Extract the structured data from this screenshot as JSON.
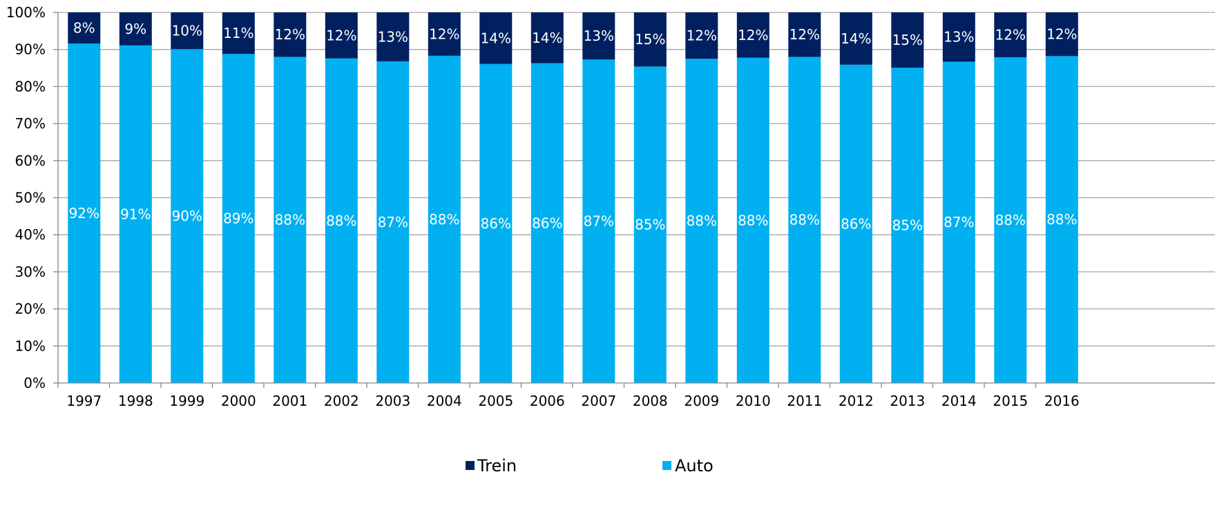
{
  "chart_data": {
    "type": "bar",
    "stacked": true,
    "categories": [
      "1997",
      "1998",
      "1999",
      "2000",
      "2001",
      "2002",
      "2003",
      "2004",
      "2005",
      "2006",
      "2007",
      "2008",
      "2009",
      "2010",
      "2011",
      "2012",
      "2013",
      "2014",
      "2015",
      "2016"
    ],
    "series": [
      {
        "name": "Auto",
        "color": "#00b0f0",
        "values": [
          91.6,
          91.1,
          90.1,
          88.8,
          88.0,
          87.6,
          86.8,
          88.3,
          86.1,
          86.3,
          87.3,
          85.4,
          87.5,
          87.8,
          88.0,
          85.9,
          85.1,
          86.7,
          87.9,
          88.2
        ],
        "labels": [
          "92%",
          "91%",
          "90%",
          "89%",
          "88%",
          "88%",
          "87%",
          "88%",
          "86%",
          "86%",
          "87%",
          "85%",
          "88%",
          "88%",
          "88%",
          "86%",
          "85%",
          "87%",
          "88%",
          "88%"
        ]
      },
      {
        "name": "Trein",
        "color": "#002060",
        "values": [
          8.4,
          8.9,
          9.9,
          11.2,
          12.0,
          12.4,
          13.2,
          11.7,
          13.9,
          13.7,
          12.7,
          14.6,
          12.5,
          12.2,
          12.0,
          14.1,
          14.9,
          13.3,
          12.1,
          11.8
        ],
        "labels": [
          "8%",
          "9%",
          "10%",
          "11%",
          "12%",
          "12%",
          "13%",
          "12%",
          "14%",
          "14%",
          "13%",
          "15%",
          "12%",
          "12%",
          "12%",
          "14%",
          "15%",
          "13%",
          "12%",
          "12%"
        ]
      }
    ],
    "y_ticks": [
      "0%",
      "10%",
      "20%",
      "30%",
      "40%",
      "50%",
      "60%",
      "70%",
      "80%",
      "90%",
      "100%"
    ],
    "ylim": [
      0,
      100
    ],
    "grid": true,
    "legend": {
      "placement": "bottom-center",
      "items": [
        {
          "name": "Trein",
          "color": "#002060"
        },
        {
          "name": "Auto",
          "color": "#00b0f0"
        }
      ]
    },
    "title": "",
    "xlabel": "",
    "ylabel": ""
  }
}
